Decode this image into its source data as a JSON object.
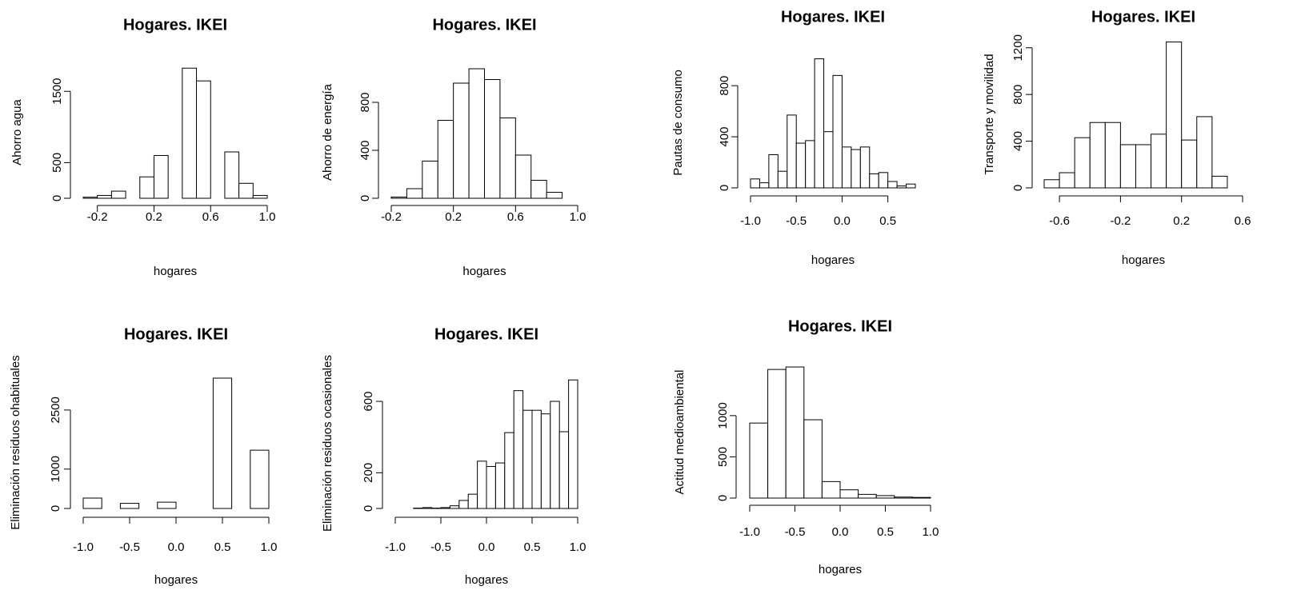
{
  "chart_data": [
    {
      "type": "histogram",
      "title": "Hogares. IKEI",
      "xlabel": "hogares",
      "ylabel": "Ahorro agua",
      "bins": [
        -0.3,
        -0.2,
        -0.1,
        0,
        0.1,
        0.2,
        0.3,
        0.4,
        0.5,
        0.6,
        0.7,
        0.8,
        0.9,
        1.0
      ],
      "values": [
        15,
        40,
        100,
        0,
        300,
        600,
        0,
        1825,
        1646,
        0,
        650,
        210,
        40
      ],
      "color": "#ffffff",
      "edgecolor": "#000000",
      "xlim": [
        -0.3,
        1.0
      ],
      "xticks": [
        -0.2,
        0.2,
        0.6,
        {
          "value": 1,
          "label": "1.0"
        }
      ],
      "ylim": [
        0,
        1850
      ],
      "yticks": [
        0,
        500,
        1500
      ]
    },
    {
      "type": "histogram",
      "title": "Hogares. IKEI",
      "xlabel": "hogares",
      "ylabel": "Ahorro de energía",
      "bins": [
        -0.2,
        -0.1,
        0,
        0.1,
        0.2,
        0.3,
        0.4,
        0.5,
        0.6,
        0.7,
        0.8,
        0.9
      ],
      "values": [
        10,
        80,
        310,
        650,
        960,
        1080,
        990,
        670,
        360,
        150,
        50
      ],
      "color": "#ffffff",
      "edgecolor": "#000000",
      "xlim": [
        -0.2,
        1.0
      ],
      "xticks": [
        -0.2,
        0.2,
        0.6,
        {
          "value": 1,
          "label": "1.0"
        }
      ],
      "ylim": [
        0,
        1100
      ],
      "yticks": [
        0,
        400,
        800
      ]
    },
    {
      "type": "histogram",
      "title": "Hogares. IKEI",
      "xlabel": "hogares",
      "ylabel": "Pautas de consumo",
      "bins": [
        -1.0,
        -0.9,
        -0.8,
        -0.7,
        -0.6,
        -0.5,
        -0.4,
        -0.3,
        -0.2,
        -0.1,
        0,
        0.1,
        0.2,
        0.3,
        0.4,
        0.5,
        0.6,
        0.7,
        0.8
      ],
      "values": [
        70,
        40,
        260,
        130,
        570,
        350,
        370,
        1010,
        440,
        880,
        320,
        300,
        320,
        110,
        120,
        50,
        15,
        30
      ],
      "color": "#ffffff",
      "edgecolor": "#000000",
      "xlim": [
        -1.0,
        0.8
      ],
      "xticks": [
        {
          "value": -1,
          "label": "-1.0"
        },
        -0.5,
        {
          "value": 0,
          "label": "0.0"
        },
        0.5
      ],
      "ylim": [
        0,
        1020
      ],
      "yticks": [
        0,
        400,
        800
      ]
    },
    {
      "type": "histogram",
      "title": "Hogares. IKEI",
      "xlabel": "hogares",
      "ylabel": "Transporte y movilidad",
      "bins": [
        -0.7,
        -0.6,
        -0.5,
        -0.4,
        -0.3,
        -0.2,
        -0.1,
        0,
        0.1,
        0.2,
        0.3,
        0.4,
        0.5
      ],
      "values": [
        70,
        130,
        430,
        560,
        560,
        370,
        370,
        460,
        1250,
        410,
        610,
        100
      ],
      "color": "#ffffff",
      "edgecolor": "#000000",
      "xlim": [
        -0.7,
        0.6
      ],
      "xticks": [
        -0.6,
        -0.2,
        0.2,
        0.6
      ],
      "ylim": [
        0,
        1260
      ],
      "yticks": [
        0,
        400,
        800,
        1200
      ]
    },
    {
      "type": "histogram",
      "title": "Hogares. IKEI",
      "xlabel": "hogares",
      "ylabel": "Eliminación residuos ohabituales",
      "bins": [
        -1.0,
        -0.8,
        -0.6,
        -0.4,
        -0.2,
        0,
        0.2,
        0.4,
        0.6,
        0.8,
        1.0
      ],
      "values": [
        264,
        0,
        130,
        0,
        160,
        0,
        0,
        3310,
        0,
        1480
      ],
      "color": "#ffffff",
      "edgecolor": "#000000",
      "xlim": [
        -1.0,
        1.0
      ],
      "xticks": [
        {
          "value": -1,
          "label": "-1.0"
        },
        -0.5,
        {
          "value": 0,
          "label": "0.0"
        },
        0.5,
        {
          "value": 1,
          "label": "1.0"
        }
      ],
      "ylim": [
        0,
        3350
      ],
      "yticks": [
        0,
        1000,
        2500
      ]
    },
    {
      "type": "histogram",
      "title": "Hogares. IKEI",
      "xlabel": "hogares",
      "ylabel": "Eliminación residuos ocasionales",
      "bins": [
        -1.0,
        -0.9,
        -0.8,
        -0.7,
        -0.6,
        -0.5,
        -0.4,
        -0.3,
        -0.2,
        -0.1,
        0,
        0.1,
        0.2,
        0.3,
        0.4,
        0.5,
        0.6,
        0.7,
        0.8,
        0.9,
        1.0
      ],
      "values": [
        0,
        0,
        2,
        5,
        2,
        5,
        15,
        45,
        80,
        265,
        235,
        255,
        425,
        660,
        550,
        550,
        530,
        600,
        430,
        720
      ],
      "color": "#ffffff",
      "edgecolor": "#000000",
      "xlim": [
        -1.0,
        1.0
      ],
      "xticks": [
        {
          "value": -1,
          "label": "-1.0"
        },
        -0.5,
        {
          "value": 0,
          "label": "0.0"
        },
        0.5,
        {
          "value": 1,
          "label": "1.0"
        }
      ],
      "ylim": [
        0,
        730
      ],
      "yticks": [
        0,
        200,
        600
      ]
    },
    {
      "type": "histogram",
      "title": "Hogares. IKEI",
      "xlabel": "hogares",
      "ylabel": "Actitud medioambiental",
      "bins": [
        -1.0,
        -0.8,
        -0.6,
        -0.4,
        -0.2,
        0,
        0.2,
        0.4,
        0.6,
        0.8,
        1.0
      ],
      "values": [
        910,
        1560,
        1590,
        950,
        200,
        100,
        45,
        30,
        12,
        8
      ],
      "color": "#ffffff",
      "edgecolor": "#000000",
      "xlim": [
        -1.0,
        1.0
      ],
      "xticks": [
        {
          "value": -1,
          "label": "-1.0"
        },
        -0.5,
        {
          "value": 0,
          "label": "0.0"
        },
        0.5,
        {
          "value": 1,
          "label": "1.0"
        }
      ],
      "ylim": [
        0,
        1600
      ],
      "yticks": [
        0,
        500,
        1000
      ]
    }
  ]
}
